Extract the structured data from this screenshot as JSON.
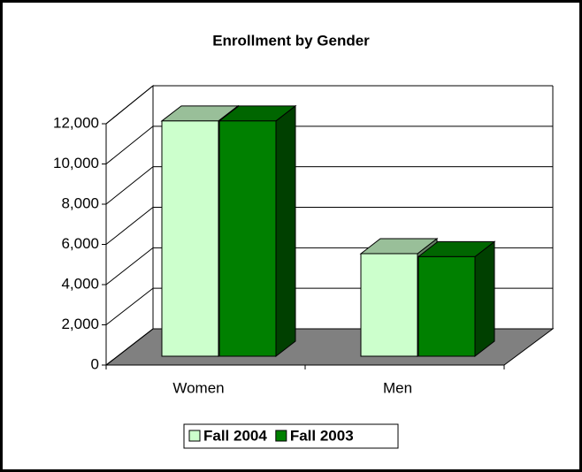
{
  "chart_data": {
    "type": "bar3d",
    "title": "Enrollment by Gender",
    "categories": [
      "Women",
      "Men"
    ],
    "series": [
      {
        "name": "Fall 2004",
        "color": "#ccffcc",
        "values": [
          11700,
          5100
        ]
      },
      {
        "name": "Fall 2003",
        "color": "#008000",
        "values": [
          11700,
          4950
        ]
      }
    ],
    "ylim": [
      0,
      12000
    ],
    "yticks": [
      0,
      {
        "value": 2000,
        "label": "2,000"
      },
      {
        "value": 4000,
        "label": "4,000"
      },
      {
        "value": 6000,
        "label": "6,000"
      },
      {
        "value": 8000,
        "label": "8,000"
      },
      {
        "value": 10000,
        "label": "10,000"
      },
      {
        "value": 12000,
        "label": "12,000"
      }
    ],
    "grid": true,
    "legend": "bottom"
  }
}
